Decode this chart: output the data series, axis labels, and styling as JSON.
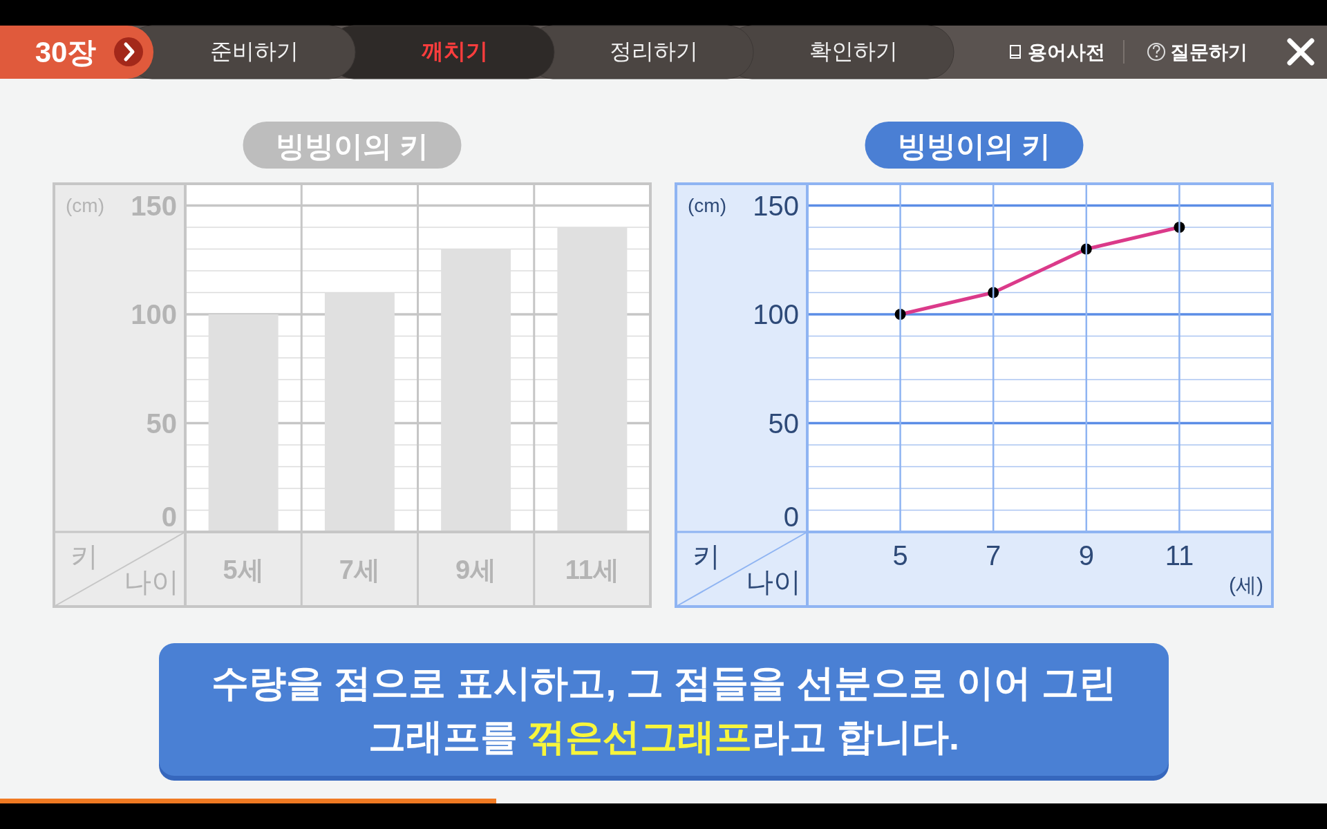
{
  "chart_data": [
    {
      "type": "other",
      "annotations": [
        "30장",
        "준비하기",
        "깨치기",
        "정리하기",
        "확인하기",
        "용어사전",
        "질문하기"
      ]
    },
    {
      "type": "bar",
      "title": "빙빙이의 키",
      "categories": [
        "5세",
        "7세",
        "9세",
        "11세"
      ],
      "values": [
        100,
        110,
        130,
        140
      ],
      "color": "#e0e0e0",
      "xlabel": "나이",
      "ylabel": "키",
      "annotations": [
        "(cm)"
      ],
      "ylim": [
        0,
        160
      ],
      "yticks": [
        0,
        {
          "value": 10,
          "label": null
        },
        {
          "value": 20,
          "label": null
        },
        {
          "value": 30,
          "label": null
        },
        {
          "value": 40,
          "label": null
        },
        50,
        {
          "value": 60,
          "label": null
        },
        {
          "value": 70,
          "label": null
        },
        {
          "value": 80,
          "label": null
        },
        {
          "value": 90,
          "label": null
        },
        100,
        {
          "value": 110,
          "label": null
        },
        {
          "value": 120,
          "label": null
        },
        {
          "value": 130,
          "label": null
        },
        {
          "value": 140,
          "label": null
        },
        150
      ],
      "grid": true
    },
    {
      "type": "line",
      "title": "빙빙이의 키",
      "x": [
        5,
        7,
        9,
        11
      ],
      "values": [
        100,
        110,
        130,
        140
      ],
      "color": "#db3a8a",
      "marker": "circle",
      "xlabel": "나이",
      "ylabel": "키",
      "annotations": [
        "(cm)",
        "(세)"
      ],
      "xlim": [
        3,
        13
      ],
      "xticks": [
        5,
        7,
        9,
        11
      ],
      "ylim": [
        0,
        160
      ],
      "yticks": [
        0,
        {
          "value": 10,
          "label": null
        },
        {
          "value": 20,
          "label": null
        },
        {
          "value": 30,
          "label": null
        },
        {
          "value": 40,
          "label": null
        },
        50,
        {
          "value": 60,
          "label": null
        },
        {
          "value": 70,
          "label": null
        },
        {
          "value": 80,
          "label": null
        },
        {
          "value": 90,
          "label": null
        },
        100,
        {
          "value": 110,
          "label": null
        },
        {
          "value": 120,
          "label": null
        },
        {
          "value": 130,
          "label": null
        },
        {
          "value": 140,
          "label": null
        },
        150
      ],
      "grid": true
    },
    {
      "type": "other",
      "annotations": [
        "수량을 점으로 표시하고, 그 점들을 선분으로 이어 그린",
        "그래프를 ",
        "꺾은선그래프",
        "라고 합니다."
      ]
    }
  ]
}
